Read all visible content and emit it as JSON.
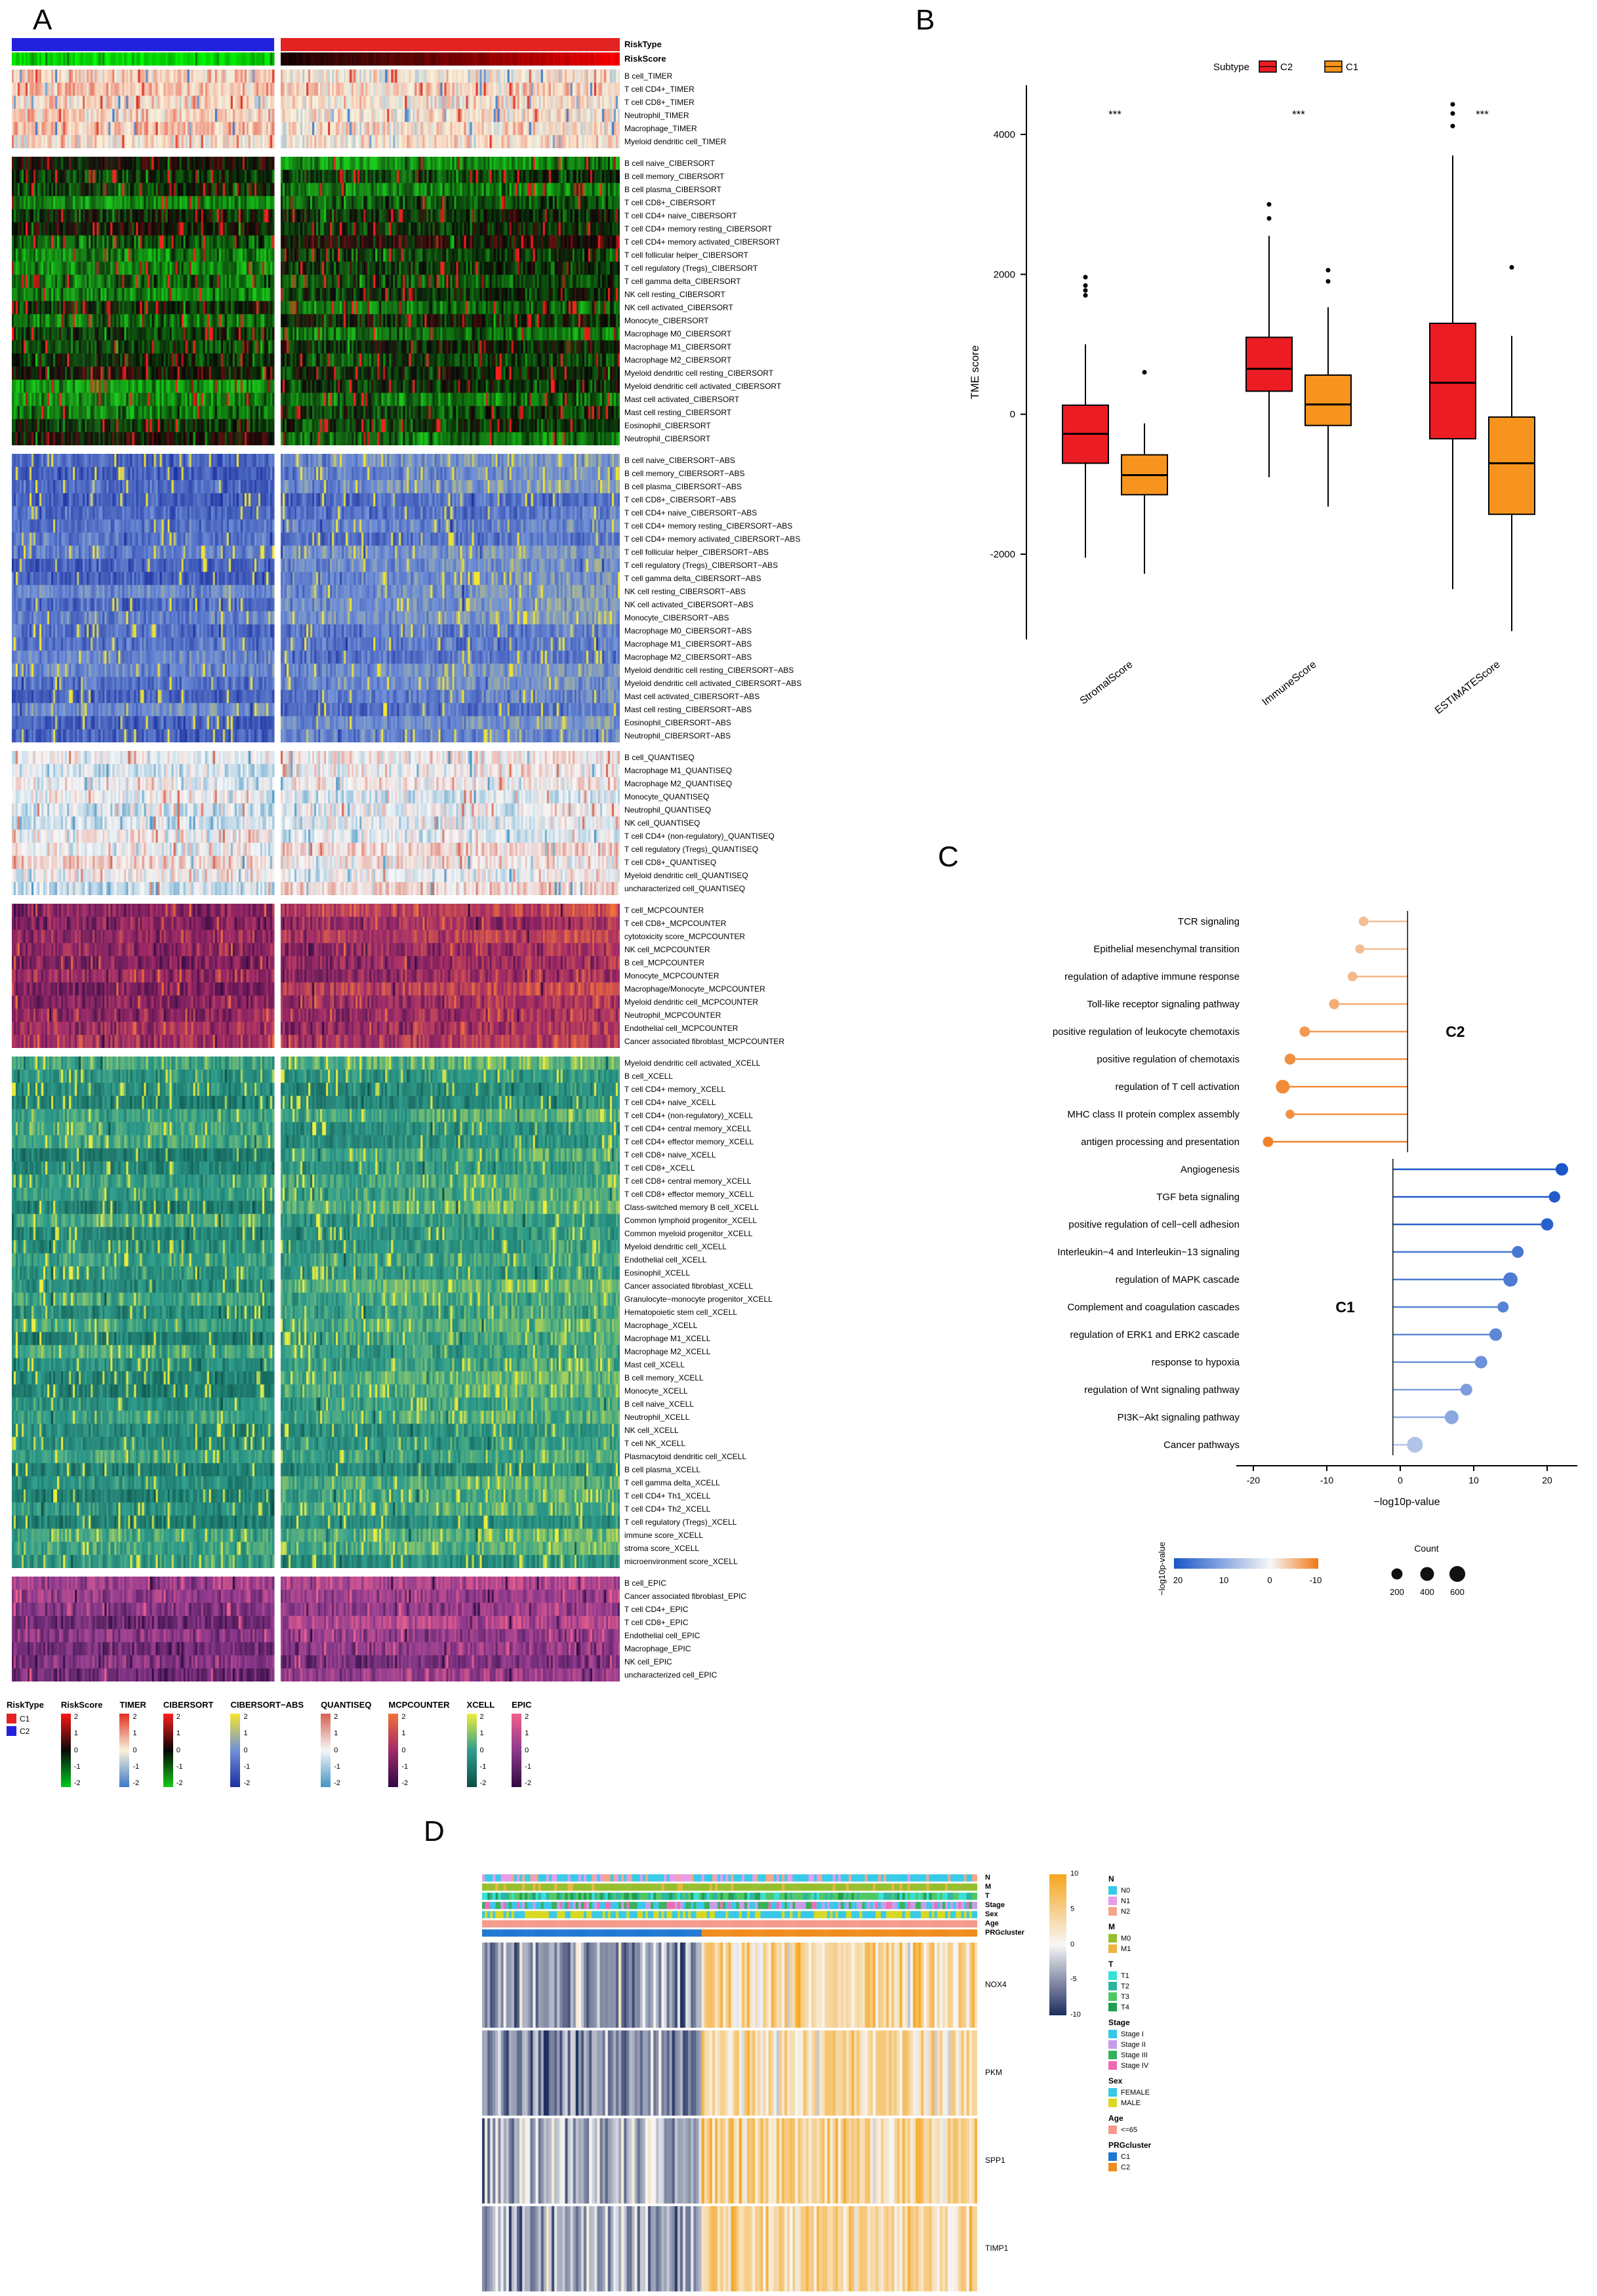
{
  "panels": {
    "a": "A",
    "b": "B",
    "c": "C",
    "d": "D"
  },
  "chart_data": [
    {
      "id": "panelA",
      "type": "heatmap",
      "column_annotations": [
        {
          "label": "RiskType"
        },
        {
          "label": "RiskScore"
        }
      ],
      "blocks": [
        {
          "name": "TIMER",
          "rows": [
            "B cell_TIMER",
            "T cell CD4+_TIMER",
            "T cell CD8+_TIMER",
            "Neutrophil_TIMER",
            "Macrophage_TIMER",
            "Myeloid dendritic cell_TIMER"
          ]
        },
        {
          "name": "CIBERSORT",
          "rows": [
            "B cell naive_CIBERSORT",
            "B cell memory_CIBERSORT",
            "B cell plasma_CIBERSORT",
            "T cell CD8+_CIBERSORT",
            "T cell CD4+ naive_CIBERSORT",
            "T cell CD4+ memory resting_CIBERSORT",
            "T cell CD4+ memory activated_CIBERSORT",
            "T cell follicular helper_CIBERSORT",
            "T cell regulatory (Tregs)_CIBERSORT",
            "T cell gamma delta_CIBERSORT",
            "NK cell resting_CIBERSORT",
            "NK cell activated_CIBERSORT",
            "Monocyte_CIBERSORT",
            "Macrophage M0_CIBERSORT",
            "Macrophage M1_CIBERSORT",
            "Macrophage M2_CIBERSORT",
            "Myeloid dendritic cell resting_CIBERSORT",
            "Myeloid dendritic cell activated_CIBERSORT",
            "Mast cell activated_CIBERSORT",
            "Mast cell resting_CIBERSORT",
            "Eosinophil_CIBERSORT",
            "Neutrophil_CIBERSORT"
          ]
        },
        {
          "name": "CIBERSORT−ABS",
          "rows": [
            "B cell naive_CIBERSORT−ABS",
            "B cell memory_CIBERSORT−ABS",
            "B cell plasma_CIBERSORT−ABS",
            "T cell CD8+_CIBERSORT−ABS",
            "T cell CD4+ naive_CIBERSORT−ABS",
            "T cell CD4+ memory resting_CIBERSORT−ABS",
            "T cell CD4+ memory activated_CIBERSORT−ABS",
            "T cell follicular helper_CIBERSORT−ABS",
            "T cell regulatory (Tregs)_CIBERSORT−ABS",
            "T cell gamma delta_CIBERSORT−ABS",
            "NK cell resting_CIBERSORT−ABS",
            "NK cell activated_CIBERSORT−ABS",
            "Monocyte_CIBERSORT−ABS",
            "Macrophage M0_CIBERSORT−ABS",
            "Macrophage M1_CIBERSORT−ABS",
            "Macrophage M2_CIBERSORT−ABS",
            "Myeloid dendritic cell resting_CIBERSORT−ABS",
            "Myeloid dendritic cell activated_CIBERSORT−ABS",
            "Mast cell activated_CIBERSORT−ABS",
            "Mast cell resting_CIBERSORT−ABS",
            "Eosinophil_CIBERSORT−ABS",
            "Neutrophil_CIBERSORT−ABS"
          ]
        },
        {
          "name": "QUANTISEQ",
          "rows": [
            "B cell_QUANTISEQ",
            "Macrophage M1_QUANTISEQ",
            "Macrophage M2_QUANTISEQ",
            "Monocyte_QUANTISEQ",
            "Neutrophil_QUANTISEQ",
            "NK cell_QUANTISEQ",
            "T cell CD4+ (non-regulatory)_QUANTISEQ",
            "T cell regulatory (Tregs)_QUANTISEQ",
            "T cell CD8+_QUANTISEQ",
            "Myeloid dendritic cell_QUANTISEQ",
            "uncharacterized cell_QUANTISEQ"
          ]
        },
        {
          "name": "MCPCOUNTER",
          "rows": [
            "T cell_MCPCOUNTER",
            "T cell CD8+_MCPCOUNTER",
            "cytotoxicity score_MCPCOUNTER",
            "NK cell_MCPCOUNTER",
            "B cell_MCPCOUNTER",
            "Monocyte_MCPCOUNTER",
            "Macrophage/Monocyte_MCPCOUNTER",
            "Myeloid dendritic cell_MCPCOUNTER",
            "Neutrophil_MCPCOUNTER",
            "Endothelial cell_MCPCOUNTER",
            "Cancer associated fibroblast_MCPCOUNTER"
          ]
        },
        {
          "name": "XCELL",
          "rows": [
            "Myeloid dendritic cell activated_XCELL",
            "B cell_XCELL",
            "T cell CD4+ memory_XCELL",
            "T cell CD4+ naive_XCELL",
            "T cell CD4+ (non-regulatory)_XCELL",
            "T cell CD4+ central memory_XCELL",
            "T cell CD4+ effector memory_XCELL",
            "T cell CD8+ naive_XCELL",
            "T cell CD8+_XCELL",
            "T cell CD8+ central memory_XCELL",
            "T cell CD8+ effector memory_XCELL",
            "Class-switched memory B cell_XCELL",
            "Common lymphoid progenitor_XCELL",
            "Common myeloid progenitor_XCELL",
            "Myeloid dendritic cell_XCELL",
            "Endothelial cell_XCELL",
            "Eosinophil_XCELL",
            "Cancer associated fibroblast_XCELL",
            "Granulocyte−monocyte progenitor_XCELL",
            "Hematopoietic stem cell_XCELL",
            "Macrophage_XCELL",
            "Macrophage M1_XCELL",
            "Macrophage M2_XCELL",
            "Mast cell_XCELL",
            "B cell memory_XCELL",
            "Monocyte_XCELL",
            "B cell naive_XCELL",
            "Neutrophil_XCELL",
            "NK cell_XCELL",
            "T cell NK_XCELL",
            "Plasmacytoid dendritic cell_XCELL",
            "B cell plasma_XCELL",
            "T cell gamma delta_XCELL",
            "T cell CD4+ Th1_XCELL",
            "T cell CD4+ Th2_XCELL",
            "T cell regulatory (Tregs)_XCELL",
            "immune score_XCELL",
            "stroma score_XCELL",
            "microenvironment score_XCELL"
          ]
        },
        {
          "name": "EPIC",
          "rows": [
            "B cell_EPIC",
            "Cancer associated fibroblast_EPIC",
            "T cell CD4+_EPIC",
            "T cell CD8+_EPIC",
            "Endothelial cell_EPIC",
            "Macrophage_EPIC",
            "NK cell_EPIC",
            "uncharacterized cell_EPIC"
          ]
        }
      ],
      "legends": [
        {
          "title": "RiskType",
          "type": "cat",
          "items": [
            {
              "label": "C1",
              "color": "#e32222"
            },
            {
              "label": "C2",
              "color": "#2222dc"
            }
          ]
        },
        {
          "title": "RiskScore",
          "type": "grad",
          "ticks": [
            "2",
            "1",
            "0",
            "-1",
            "-2"
          ],
          "stops": [
            "#ff1414",
            "#0a0a0a",
            "#00c81e"
          ]
        },
        {
          "title": "TIMER",
          "type": "grad",
          "ticks": [
            "2",
            "1",
            "0",
            "-1",
            "-2"
          ],
          "stops": [
            "#e03020",
            "#faf3dc",
            "#3c78c8"
          ]
        },
        {
          "title": "CIBERSORT",
          "type": "grad",
          "ticks": [
            "2",
            "1",
            "0",
            "-1",
            "-2"
          ],
          "stops": [
            "#ff1e1e",
            "#070707",
            "#18c818"
          ]
        },
        {
          "title": "CIBERSORT−ABS",
          "type": "grad",
          "ticks": [
            "2",
            "1",
            "0",
            "-1",
            "-2"
          ],
          "stops": [
            "#f5e62e",
            "#7090d8",
            "#1a2fa0"
          ]
        },
        {
          "title": "QUANTISEQ",
          "type": "grad",
          "ticks": [
            "2",
            "1",
            "0",
            "-1",
            "-2"
          ],
          "stops": [
            "#d6604d",
            "#f7f7f7",
            "#4393c3"
          ]
        },
        {
          "title": "MCPCOUNTER",
          "type": "grad",
          "ticks": [
            "2",
            "1",
            "0",
            "-1",
            "-2"
          ],
          "stops": [
            "#f2713a",
            "#a02a68",
            "#300a45"
          ]
        },
        {
          "title": "XCELL",
          "type": "grad",
          "ticks": [
            "2",
            "1",
            "0",
            "-1",
            "-2"
          ],
          "stops": [
            "#eeee3c",
            "#2f9e8e",
            "#0a4f46"
          ]
        },
        {
          "title": "EPIC",
          "type": "grad",
          "ticks": [
            "2",
            "1",
            "0",
            "-1",
            "-2"
          ],
          "stops": [
            "#f2608c",
            "#8e3a8e",
            "#2d0a3d"
          ]
        }
      ]
    },
    {
      "id": "panelB",
      "type": "box",
      "ylabel": "TME score",
      "yticks": [
        4000,
        2000,
        0,
        -2000
      ],
      "categories": [
        "StromalScore",
        "ImmuneScore",
        "ESTIMATEScore"
      ],
      "significance": [
        "***",
        "***",
        "***"
      ],
      "legend_title": "Subtype",
      "series": [
        {
          "name": "C2",
          "color": "#ec1c24",
          "boxes": [
            {
              "low": -2050,
              "q1": -700,
              "median": -280,
              "q3": 130,
              "high": 1000,
              "outliers": [
                1700,
                1770,
                1840,
                1960
              ]
            },
            {
              "low": -900,
              "q1": 330,
              "median": 650,
              "q3": 1100,
              "high": 2550,
              "outliers": [
                2800,
                3000
              ]
            },
            {
              "low": -2500,
              "q1": -350,
              "median": 450,
              "q3": 1300,
              "high": 3700,
              "outliers": [
                4120,
                4300,
                4430
              ]
            }
          ]
        },
        {
          "name": "C1",
          "color": "#f7941d",
          "boxes": [
            {
              "low": -2280,
              "q1": -1150,
              "median": -870,
              "q3": -580,
              "high": -130,
              "outliers": [
                600
              ]
            },
            {
              "low": -1320,
              "q1": -160,
              "median": 140,
              "q3": 560,
              "high": 1530,
              "outliers": [
                1900,
                2060
              ]
            },
            {
              "low": -3100,
              "q1": -1430,
              "median": -700,
              "q3": -40,
              "high": 1120,
              "outliers": [
                2100
              ]
            }
          ]
        }
      ]
    },
    {
      "id": "panelC",
      "type": "lollipop",
      "xlabel": "−log10p-value",
      "xticks": [
        -20,
        -10,
        0,
        10,
        20
      ],
      "groups": [
        {
          "name": "C2",
          "items": [
            {
              "label": "TCR signaling",
              "value": -5,
              "count": 120
            },
            {
              "label": "Epithelial mesenchymal transition",
              "value": -5.5,
              "count": 100
            },
            {
              "label": "regulation of adaptive immune response",
              "value": -6.5,
              "count": 120
            },
            {
              "label": "Toll-like receptor signaling pathway",
              "value": -9,
              "count": 150
            },
            {
              "label": "positive regulation of leukocyte chemotaxis",
              "value": -13,
              "count": 160
            },
            {
              "label": "positive regulation of chemotaxis",
              "value": -15,
              "count": 190
            },
            {
              "label": "regulation of T cell activation",
              "value": -16,
              "count": 400
            },
            {
              "label": "MHC class II protein complex assembly",
              "value": -15,
              "count": 90
            },
            {
              "label": "antigen processing and presentation",
              "value": -18,
              "count": 160
            }
          ]
        },
        {
          "name": "C1",
          "items": [
            {
              "label": "Angiogenesis",
              "value": 22,
              "count": 300
            },
            {
              "label": "TGF beta signaling",
              "value": 21,
              "count": 220
            },
            {
              "label": "positive regulation of cell−cell adhesion",
              "value": 20,
              "count": 280
            },
            {
              "label": "Interleukin−4 and Interleukin−13 signaling",
              "value": 16,
              "count": 250
            },
            {
              "label": "regulation of MAPK cascade",
              "value": 15,
              "count": 450
            },
            {
              "label": "Complement and coagulation cascades",
              "value": 14,
              "count": 200
            },
            {
              "label": "regulation of ERK1 and ERK2 cascade",
              "value": 13,
              "count": 300
            },
            {
              "label": "response to hypoxia",
              "value": 11,
              "count": 300
            },
            {
              "label": "regulation of Wnt signaling pathway",
              "value": 9,
              "count": 250
            },
            {
              "label": "PI3K−Akt signaling pathway",
              "value": 7,
              "count": 400
            },
            {
              "label": "Cancer pathways",
              "value": 2,
              "count": 600
            }
          ]
        }
      ],
      "legend_gradient": {
        "title": "−log10p-value",
        "ticks": [
          20,
          10,
          0,
          -10
        ],
        "colors": [
          "#1a56c8",
          "#f7f7f7",
          "#f07818"
        ]
      },
      "legend_count": {
        "title": "Count",
        "values": [
          200,
          400,
          600
        ]
      }
    },
    {
      "id": "panelD",
      "type": "heatmap",
      "genes": [
        "NOX4",
        "PKM",
        "SPP1",
        "TIMP1"
      ],
      "colorbar_ticks": [
        10,
        5,
        0,
        -5,
        -10
      ],
      "colorbar_colors": [
        "#f5a51d",
        "#f7f7f7",
        "#1d2d5e"
      ],
      "annotation_rows": [
        "N",
        "M",
        "T",
        "Stage",
        "Sex",
        "Age",
        "PRGcluster"
      ],
      "legends": [
        {
          "title": "N",
          "items": [
            {
              "label": "N0",
              "color": "#35cbe8"
            },
            {
              "label": "N1",
              "color": "#e89be8"
            },
            {
              "label": "N2",
              "color": "#f5a58a"
            }
          ]
        },
        {
          "title": "M",
          "items": [
            {
              "label": "M0",
              "color": "#96be2d"
            },
            {
              "label": "M1",
              "color": "#eab541"
            }
          ]
        },
        {
          "title": "T",
          "items": [
            {
              "label": "T1",
              "color": "#35e0d5"
            },
            {
              "label": "T2",
              "color": "#2bb5a0"
            },
            {
              "label": "T3",
              "color": "#4fc862"
            },
            {
              "label": "T4",
              "color": "#1e9e50"
            }
          ]
        },
        {
          "title": "Stage",
          "items": [
            {
              "label": "Stage I",
              "color": "#37c8e8"
            },
            {
              "label": "Stage II",
              "color": "#c89be8"
            },
            {
              "label": "Stage III",
              "color": "#37b05a"
            },
            {
              "label": "Stage IV",
              "color": "#ee6bb4"
            }
          ]
        },
        {
          "title": "Sex",
          "items": [
            {
              "label": "FEMALE",
              "color": "#37c8e8"
            },
            {
              "label": "MALE",
              "color": "#d8d820"
            }
          ]
        },
        {
          "title": "Age",
          "items": [
            {
              "label": "<=65",
              "color": "#f59a8a"
            }
          ]
        },
        {
          "title": "PRGcluster",
          "items": [
            {
              "label": "C1",
              "color": "#1e78d2"
            },
            {
              "label": "C2",
              "color": "#f08c1e"
            }
          ]
        }
      ]
    }
  ]
}
